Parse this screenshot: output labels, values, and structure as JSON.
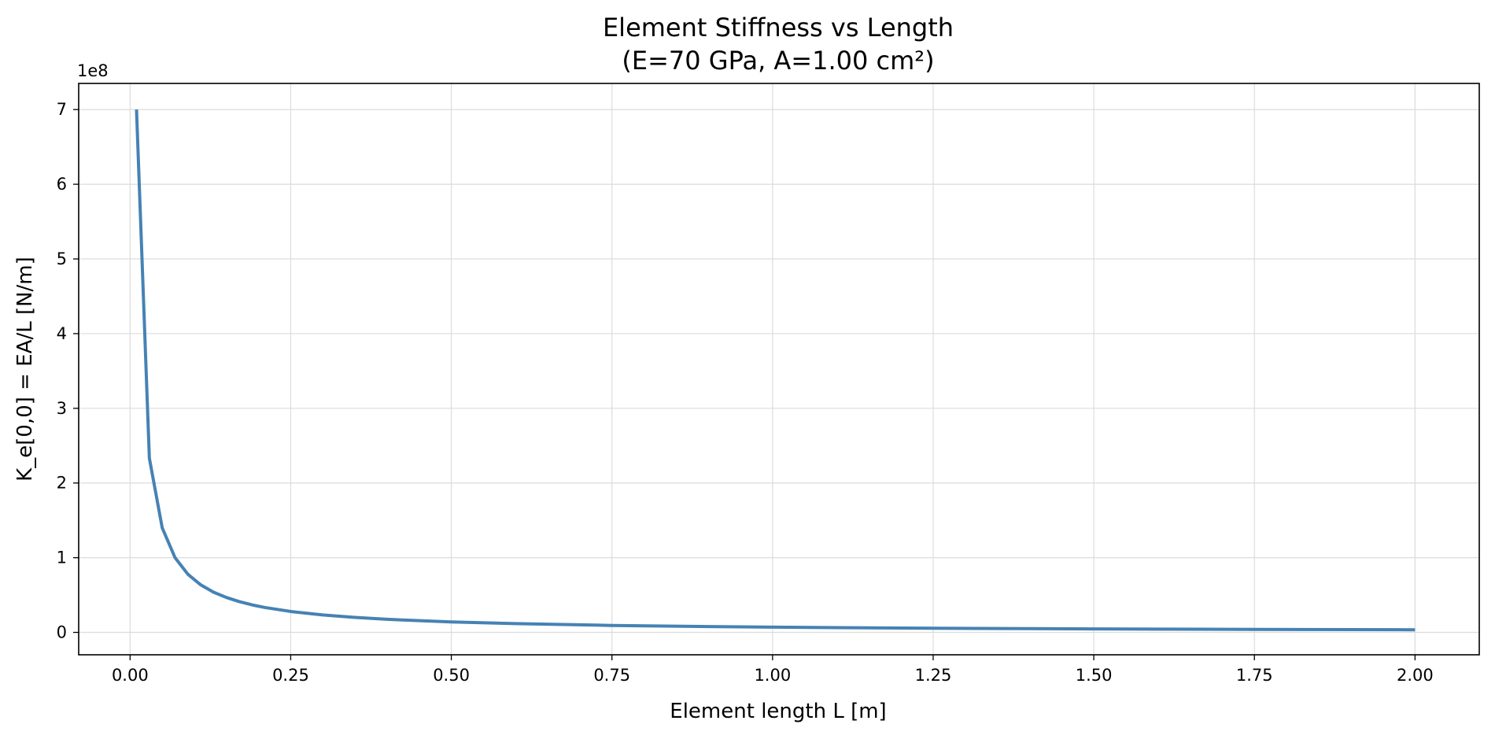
{
  "chart_data": {
    "type": "line",
    "title_line1": "Element Stiffness vs Length",
    "title_line2": "(E=70 GPa, A=1.00 cm²)",
    "xlabel": "Element length L [m]",
    "ylabel": "K_e[0,0] = EA/L [N/m]",
    "y_offset_label": "1e8",
    "xlim": [
      -0.08,
      2.1
    ],
    "ylim": [
      -0.3,
      7.35
    ],
    "y_scale_factor": 100000000,
    "x_ticks": [
      0.0,
      0.25,
      0.5,
      0.75,
      1.0,
      1.25,
      1.5,
      1.75,
      2.0
    ],
    "x_tick_labels": [
      "0.00",
      "0.25",
      "0.50",
      "0.75",
      "1.00",
      "1.25",
      "1.50",
      "1.75",
      "2.00"
    ],
    "y_ticks": [
      0,
      1,
      2,
      3,
      4,
      5,
      6,
      7
    ],
    "y_tick_labels": [
      "0",
      "1",
      "2",
      "3",
      "4",
      "5",
      "6",
      "7"
    ],
    "grid": true,
    "line_color": "#4682b4",
    "E_Pa": 70000000000,
    "A_m2": 0.0001,
    "series": [
      {
        "x": [
          0.01,
          0.03,
          0.05,
          0.07,
          0.09,
          0.11,
          0.13,
          0.15,
          0.17,
          0.19,
          0.21,
          0.25,
          0.3,
          0.35,
          0.4,
          0.5,
          0.6,
          0.75,
          0.9,
          1.0,
          1.1,
          1.25,
          1.4,
          1.5,
          1.6,
          1.75,
          1.9,
          2.0
        ],
        "y": [
          7.0,
          2.333,
          1.4,
          1.0,
          0.778,
          0.636,
          0.538,
          0.467,
          0.412,
          0.368,
          0.333,
          0.28,
          0.233,
          0.2,
          0.175,
          0.14,
          0.117,
          0.093,
          0.078,
          0.07,
          0.064,
          0.056,
          0.05,
          0.047,
          0.044,
          0.04,
          0.037,
          0.035
        ]
      }
    ]
  }
}
